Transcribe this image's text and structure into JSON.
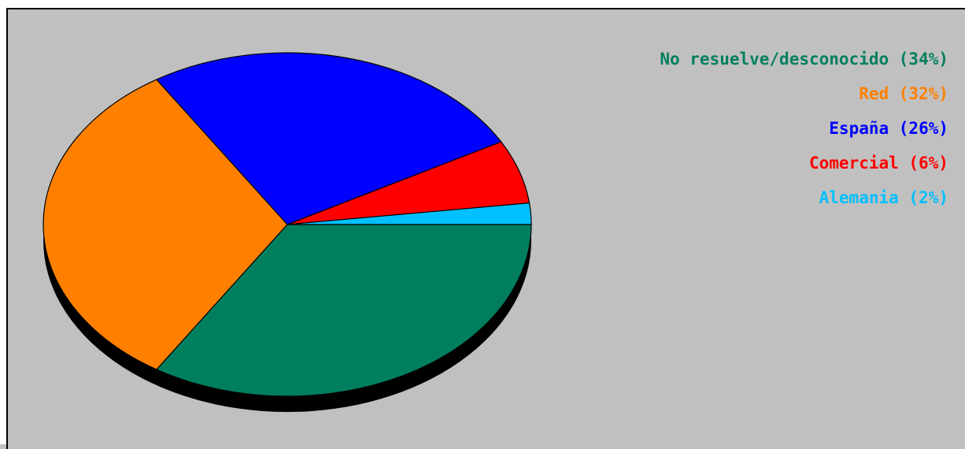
{
  "colors": {
    "background": "#c0c0c0",
    "shadow": "#000000",
    "outline": "#000000"
  },
  "chart_data": {
    "type": "pie",
    "title": "",
    "unit": "%",
    "series": [
      {
        "label": "No resuelve/desconocido (34%)",
        "name": "No resuelve/desconocido",
        "value": 34,
        "color": "#007f5f"
      },
      {
        "label": "Red (32%)",
        "name": "Red",
        "value": 32,
        "color": "#ff8000"
      },
      {
        "label": "España (26%)",
        "name": "España",
        "value": 26,
        "color": "#0000ff"
      },
      {
        "label": "Comercial (6%)",
        "name": "Comercial",
        "value": 6,
        "color": "#ff0000"
      },
      {
        "label": "Alemania (2%)",
        "name": "Alemania",
        "value": 2,
        "color": "#00c0ff"
      }
    ],
    "legend_position": "top-right",
    "three_d_shadow": true
  }
}
